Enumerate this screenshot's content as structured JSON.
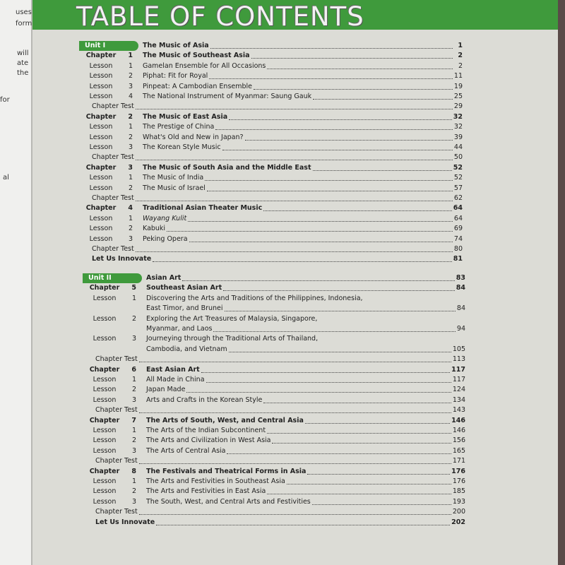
{
  "margin_fragments": [
    "uses",
    "form",
    "will",
    "ate",
    "the",
    "for",
    "al"
  ],
  "header": {
    "title": "TABLE OF CONTENTS"
  },
  "units": [
    {
      "label": "Unit I",
      "title": "The Music of Asia",
      "page": "1",
      "entries": [
        {
          "label": "Chapter",
          "num": "1",
          "title": "The Music of Southeast Asia",
          "page": "2",
          "bold": true
        },
        {
          "label": "Lesson",
          "num": "1",
          "title": "Gamelan Ensemble for All Occasions",
          "page": "2"
        },
        {
          "label": "Lesson",
          "num": "2",
          "title": "Piphat: Fit for Royal",
          "page": "11"
        },
        {
          "label": "Lesson",
          "num": "3",
          "title": "Pinpeat: A Cambodian Ensemble",
          "page": "19"
        },
        {
          "label": "Lesson",
          "num": "4",
          "title": "The National Instrument of Myanmar: Saung Gauk",
          "page": "25"
        },
        {
          "label": "Chapter Test",
          "page": "29"
        },
        {
          "label": "Chapter",
          "num": "2",
          "title": "The Music of East Asia",
          "page": "32",
          "bold": true
        },
        {
          "label": "Lesson",
          "num": "1",
          "title": "The Prestige of China",
          "page": "32"
        },
        {
          "label": "Lesson",
          "num": "2",
          "title": "What's Old and New in Japan?",
          "page": "39"
        },
        {
          "label": "Lesson",
          "num": "3",
          "title": "The Korean Style Music",
          "page": "44"
        },
        {
          "label": "Chapter Test",
          "page": "50"
        },
        {
          "label": "Chapter",
          "num": "3",
          "title": "The Music of South Asia and the Middle East",
          "page": "52",
          "bold": true
        },
        {
          "label": "Lesson",
          "num": "1",
          "title": "The Music of India",
          "page": "52"
        },
        {
          "label": "Lesson",
          "num": "2",
          "title": "The Music of Israel",
          "page": "57"
        },
        {
          "label": "Chapter Test",
          "page": "62"
        },
        {
          "label": "Chapter",
          "num": "4",
          "title": "Traditional Asian Theater Music",
          "page": "64",
          "bold": true
        },
        {
          "label": "Lesson",
          "num": "1",
          "title": "Wayang Kulit",
          "page": "64",
          "italic": true
        },
        {
          "label": "Lesson",
          "num": "2",
          "title": "Kabuki",
          "page": "69"
        },
        {
          "label": "Lesson",
          "num": "3",
          "title": "Peking Opera",
          "page": "74"
        },
        {
          "label": "Chapter Test",
          "page": "80"
        },
        {
          "label": "Let Us Innovate",
          "page": "81",
          "bold": true
        }
      ]
    },
    {
      "label": "Unit II",
      "title": "Asian Art",
      "page": "83",
      "entries": [
        {
          "label": "Chapter",
          "num": "5",
          "title": "Southeast Asian Art",
          "page": "84",
          "bold": true
        },
        {
          "label": "Lesson",
          "num": "1",
          "title": "Discovering the Arts and Traditions of the Philippines, Indonesia,",
          "continuation": "East Timor, and Brunei",
          "page": "84"
        },
        {
          "label": "Lesson",
          "num": "2",
          "title": "Exploring the Art Treasures of Malaysia, Singapore,",
          "continuation": "Myanmar, and Laos",
          "page": "94"
        },
        {
          "label": "Lesson",
          "num": "3",
          "title": "Journeying through the Traditional Arts of Thailand,",
          "continuation": "Cambodia, and Vietnam",
          "page": "105"
        },
        {
          "label": "Chapter Test",
          "page": "113"
        },
        {
          "label": "Chapter",
          "num": "6",
          "title": "East Asian Art",
          "page": "117",
          "bold": true
        },
        {
          "label": "Lesson",
          "num": "1",
          "title": "All Made in China",
          "page": "117"
        },
        {
          "label": "Lesson",
          "num": "2",
          "title": "Japan Made",
          "page": "124"
        },
        {
          "label": "Lesson",
          "num": "3",
          "title": "Arts and Crafts in the Korean Style",
          "page": "134"
        },
        {
          "label": "Chapter Test",
          "page": "143"
        },
        {
          "label": "Chapter",
          "num": "7",
          "title": "The Arts of South, West, and Central Asia",
          "page": "146",
          "bold": true
        },
        {
          "label": "Lesson",
          "num": "1",
          "title": "The Arts of the Indian Subcontinent",
          "page": "146"
        },
        {
          "label": "Lesson",
          "num": "2",
          "title": "The Arts and Civilization in West Asia",
          "page": "156"
        },
        {
          "label": "Lesson",
          "num": "3",
          "title": "The Arts of Central Asia",
          "page": "165"
        },
        {
          "label": "Chapter Test",
          "page": "171"
        },
        {
          "label": "Chapter",
          "num": "8",
          "title": "The Festivals and Theatrical Forms in Asia",
          "page": "176",
          "bold": true
        },
        {
          "label": "Lesson",
          "num": "1",
          "title": "The Arts and Festivities in Southeast Asia",
          "page": "176"
        },
        {
          "label": "Lesson",
          "num": "2",
          "title": "The Arts and Festivities in East Asia",
          "page": "185"
        },
        {
          "label": "Lesson",
          "num": "3",
          "title": "The South, West, and Central Arts and Festivities",
          "page": "193"
        },
        {
          "label": "Chapter Test",
          "page": "200"
        },
        {
          "label": "Let Us Innovate",
          "page": "202",
          "bold": true
        }
      ]
    }
  ]
}
